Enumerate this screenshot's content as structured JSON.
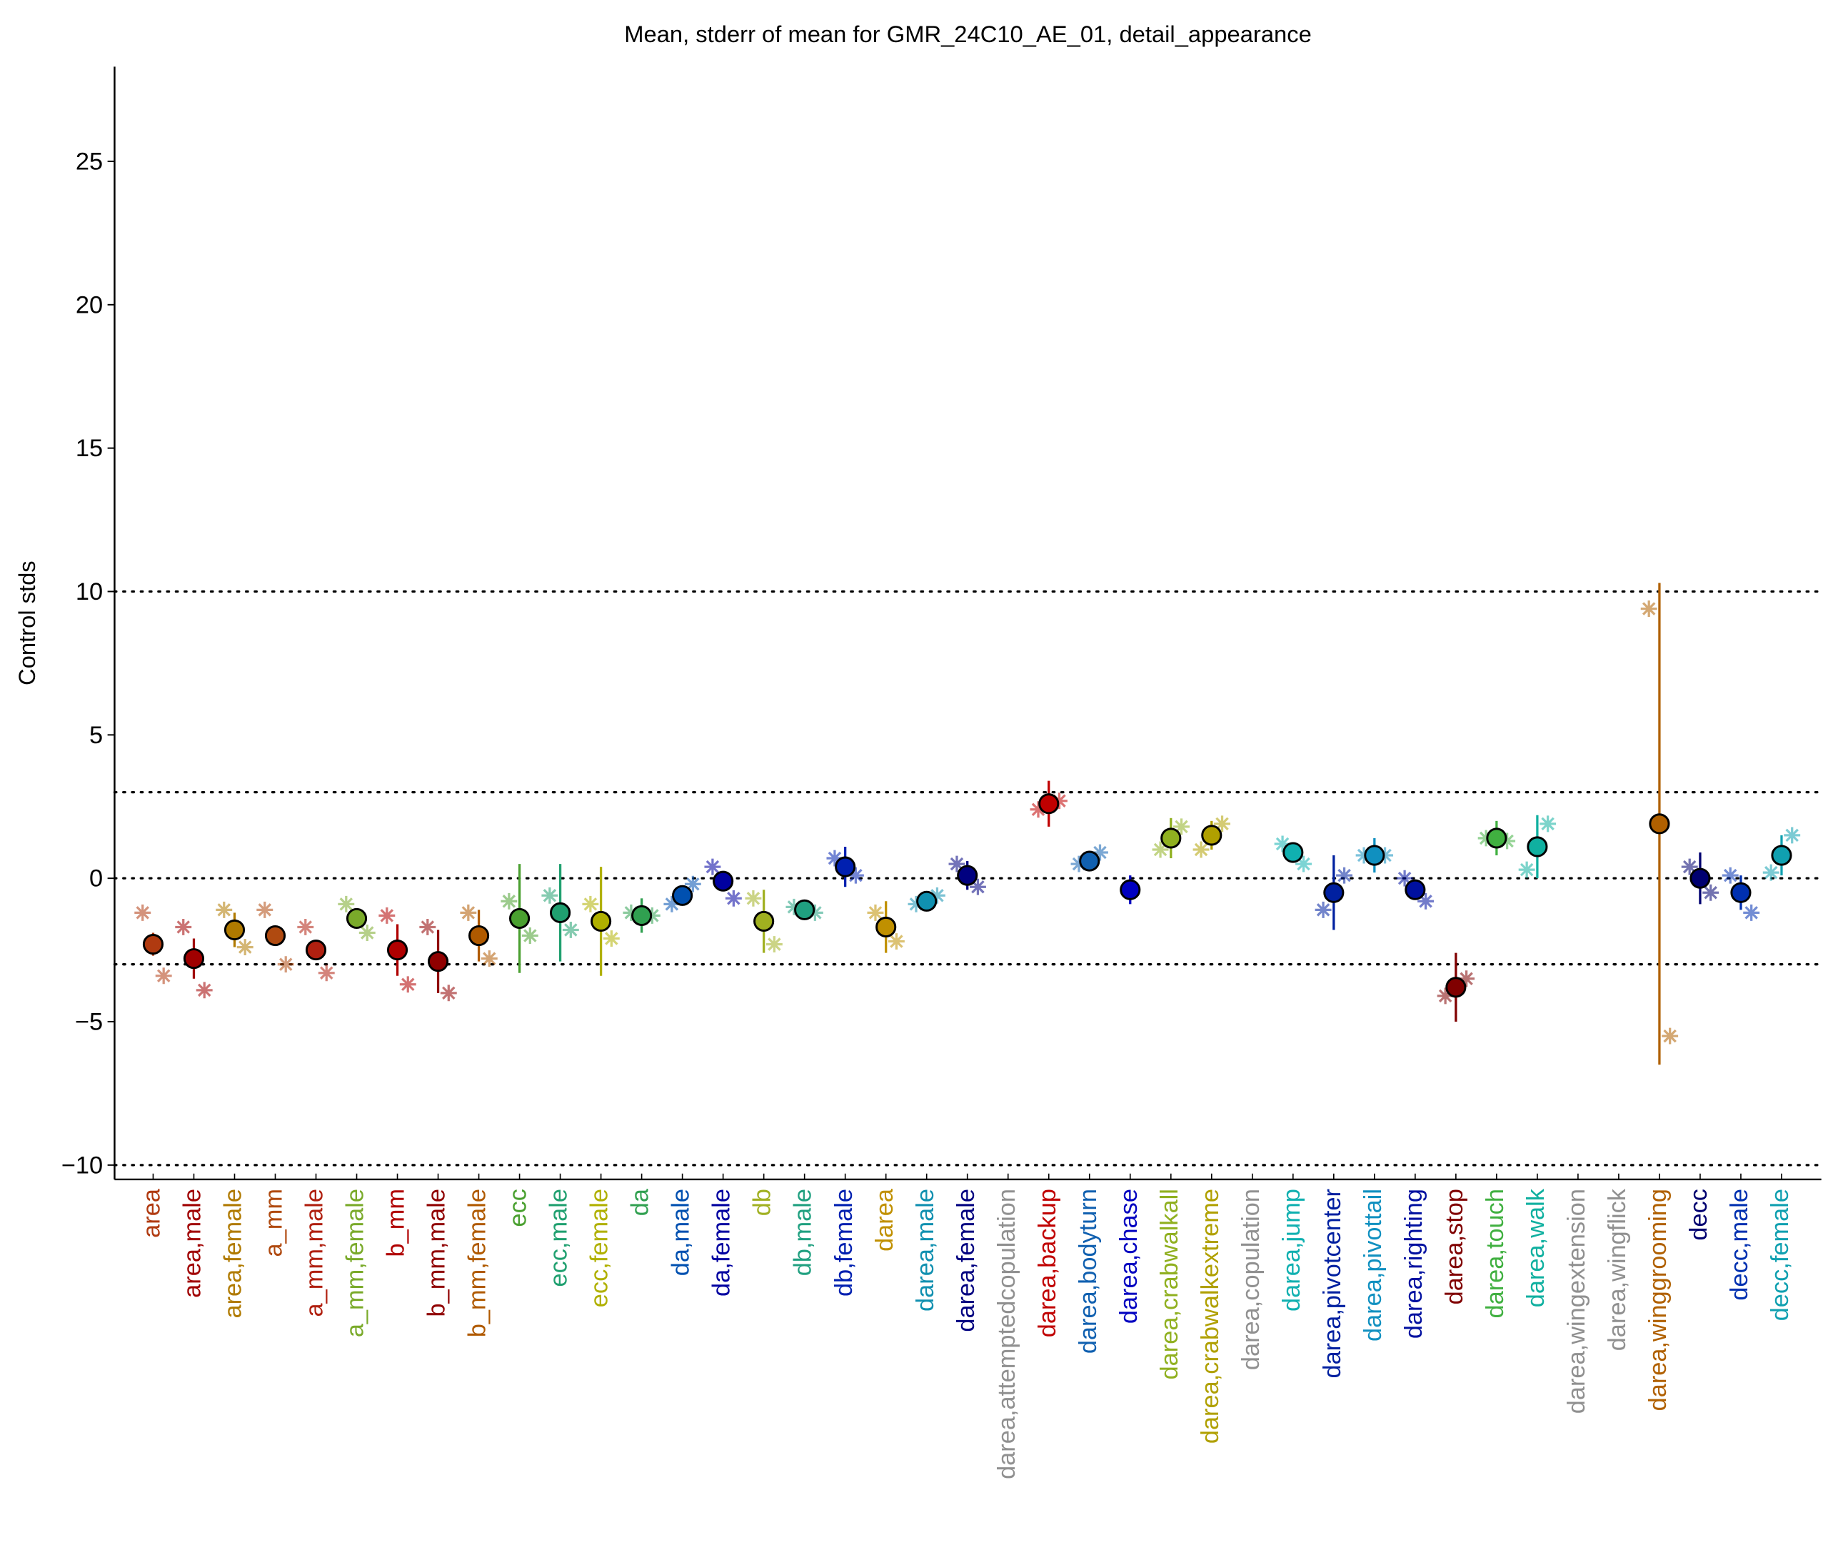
{
  "chart_data": {
    "type": "errorbar",
    "title": "Mean, stderr of mean for GMR_24C10_AE_01, detail_appearance",
    "y_label": "Control stds",
    "categories": [
      "area",
      "area,male",
      "area,female",
      "a_mm",
      "a_mm,male",
      "a_mm,female",
      "b_mm",
      "b_mm,male",
      "b_mm,female",
      "ecc",
      "ecc,male",
      "ecc,female",
      "da",
      "da,male",
      "da,female",
      "db",
      "db,male",
      "db,female",
      "darea",
      "darea,male",
      "darea,female",
      "darea,attemptedcopulation",
      "darea,backup",
      "darea,bodyturn",
      "darea,chase",
      "darea,crabwalkall",
      "darea,crabwalkextreme",
      "darea,copulation",
      "darea,jump",
      "darea,pivotcenter",
      "darea,pivottail",
      "darea,righting",
      "darea,stop",
      "darea,touch",
      "darea,walk",
      "darea,wingextension",
      "darea,wingflick",
      "darea,winggrooming",
      "decc",
      "decc,male",
      "decc,female"
    ],
    "values": [
      -2.3,
      -2.8,
      -1.8,
      -2.0,
      -2.5,
      -1.4,
      -2.5,
      -2.9,
      -2.0,
      -1.4,
      -1.2,
      -1.5,
      -1.3,
      -0.6,
      -0.1,
      -1.5,
      -1.1,
      0.4,
      -1.7,
      -0.8,
      0.1,
      null,
      2.6,
      0.6,
      -0.4,
      1.4,
      1.5,
      null,
      0.9,
      -0.5,
      0.8,
      -0.4,
      -3.8,
      1.4,
      1.1,
      null,
      null,
      1.9,
      0.0,
      -0.5,
      0.8
    ],
    "errors": [
      0.4,
      0.7,
      0.6,
      0.15,
      0.25,
      0.3,
      0.9,
      1.1,
      0.9,
      1.9,
      1.7,
      1.9,
      0.6,
      0.2,
      0.3,
      1.1,
      0.2,
      0.7,
      0.9,
      0.2,
      0.5,
      null,
      0.8,
      0.2,
      0.5,
      0.7,
      0.5,
      null,
      0.3,
      1.3,
      0.6,
      0.2,
      1.2,
      0.6,
      1.1,
      null,
      null,
      8.4,
      0.9,
      0.6,
      0.7
    ],
    "left_values": [
      -1.2,
      -1.7,
      -1.1,
      -1.1,
      -1.7,
      -0.9,
      -1.3,
      -1.7,
      -1.2,
      -0.8,
      -0.6,
      -0.9,
      -1.2,
      -0.9,
      0.4,
      -0.7,
      -1.0,
      0.7,
      -1.2,
      -0.9,
      0.5,
      null,
      2.4,
      0.5,
      null,
      1.0,
      1.0,
      null,
      1.2,
      -1.1,
      0.8,
      0.0,
      -4.1,
      1.4,
      0.3,
      null,
      null,
      9.4,
      0.4,
      0.1,
      0.2
    ],
    "right_values": [
      -3.4,
      -3.9,
      -2.4,
      -3.0,
      -3.3,
      -1.9,
      -3.7,
      -4.0,
      -2.8,
      -2.0,
      -1.8,
      -2.1,
      -1.3,
      -0.2,
      -0.7,
      -2.3,
      -1.2,
      0.1,
      -2.2,
      -0.6,
      -0.3,
      null,
      2.7,
      0.9,
      null,
      1.8,
      1.9,
      null,
      0.5,
      0.1,
      0.8,
      -0.8,
      -3.5,
      1.3,
      1.9,
      null,
      null,
      -5.5,
      -0.5,
      -1.2,
      1.5
    ],
    "colors": [
      "#b03a10",
      "#a00000",
      "#b07a00",
      "#b04a10",
      "#b02010",
      "#7aaa2a",
      "#b00000",
      "#900000",
      "#b05a00",
      "#4aa030",
      "#20a070",
      "#b0b000",
      "#30a050",
      "#0050b0",
      "#0000a0",
      "#a0b020",
      "#20a080",
      "#0020b0",
      "#c09000",
      "#1090b0",
      "#000080",
      "#909090",
      "#c00000",
      "#1060b0",
      "#0000c0",
      "#90b020",
      "#b0a000",
      "#909090",
      "#10b0b0",
      "#0020a0",
      "#1090c0",
      "#0010a0",
      "#800000",
      "#40b040",
      "#10b0a0",
      "#909090",
      "#909090",
      "#b06000",
      "#000070",
      "#0030b0",
      "#10a0b0"
    ],
    "ylim": [
      -10.5,
      28.3
    ],
    "yticks": [
      {
        "value": -10,
        "label": "−10"
      },
      {
        "value": -5,
        "label": "−5"
      },
      0,
      5,
      10,
      15,
      20,
      25
    ],
    "reference_lines": [
      -10,
      -3,
      0,
      3,
      10
    ]
  }
}
